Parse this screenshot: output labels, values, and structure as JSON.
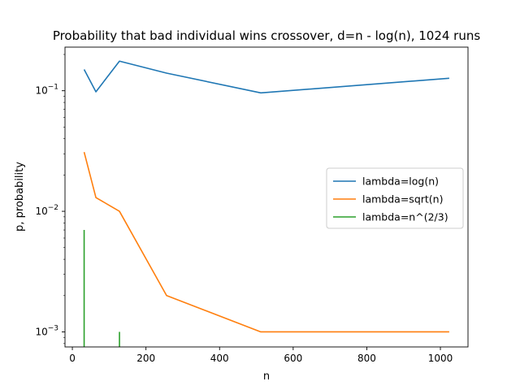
{
  "chart_data": {
    "type": "line",
    "title": "Probability that bad individual wins crossover, d=n - log(n), 1024 runs",
    "xlabel": "n",
    "ylabel": "p, probability",
    "xscale": "linear",
    "yscale": "log",
    "xlim": [
      -20,
      1075
    ],
    "ylim": [
      0.00075,
      0.23
    ],
    "xticks": [
      0,
      200,
      400,
      600,
      800,
      1000
    ],
    "xtick_labels": [
      "0",
      "200",
      "400",
      "600",
      "800",
      "1000"
    ],
    "yticks": [
      0.001,
      0.01,
      0.1
    ],
    "ytick_labels": [
      "10^-3",
      "10^-2",
      "10^-1"
    ],
    "legend_position": "center-right",
    "grid": false,
    "series": [
      {
        "name": "lambda=log(n)",
        "color": "#1f77b4",
        "x": [
          32,
          64,
          128,
          256,
          512,
          1024
        ],
        "y": [
          0.15,
          0.098,
          0.176,
          0.14,
          0.096,
          0.127
        ]
      },
      {
        "name": "lambda=sqrt(n)",
        "color": "#ff7f0e",
        "x": [
          32,
          64,
          128,
          256,
          512,
          1024
        ],
        "y": [
          0.031,
          0.013,
          0.01,
          0.002,
          0.001,
          0.001
        ]
      },
      {
        "name": "lambda=n^(2/3)",
        "color": "#2ca02c",
        "x": [
          32,
          64,
          128,
          256,
          512,
          1024
        ],
        "y": [
          0.007,
          0,
          0.001,
          0,
          0,
          0
        ]
      }
    ]
  }
}
